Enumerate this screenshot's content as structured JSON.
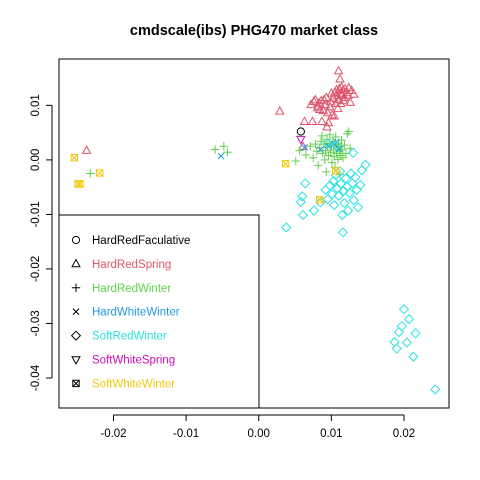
{
  "chart_data": {
    "type": "scatter",
    "title": "cmdscale(ibs) PHG470 market class",
    "xlabel": "",
    "ylabel": "",
    "xlim": [
      -0.0275,
      0.0262
    ],
    "ylim": [
      -0.0455,
      0.0185
    ],
    "x_ticks": [
      -0.02,
      -0.01,
      0.0,
      0.01,
      0.02
    ],
    "x_tick_labels": [
      "-0.02",
      "-0.01",
      "0.00",
      "0.01",
      "0.02"
    ],
    "y_ticks": [
      -0.04,
      -0.03,
      -0.02,
      -0.01,
      0.0,
      0.01
    ],
    "y_tick_labels": [
      "-0.04",
      "-0.03",
      "-0.02",
      "-0.01",
      "0.00",
      "0.01"
    ],
    "grid": false,
    "legend_position": "bottom-left",
    "series": [
      {
        "name": "HardRedFaculative",
        "symbol": "circle",
        "color": "#000000",
        "points": [
          [
            0.0058,
            0.0052
          ]
        ]
      },
      {
        "name": "HardRedSpring",
        "symbol": "triangle-up",
        "color": "#DF536B",
        "points": [
          [
            -0.0237,
            0.0017
          ],
          [
            0.0029,
            0.0089
          ],
          [
            0.0061,
            0.0024
          ],
          [
            0.0063,
            0.007
          ],
          [
            0.0072,
            0.0101
          ],
          [
            0.0074,
            0.007
          ],
          [
            0.0076,
            0.0107
          ],
          [
            0.0078,
            0.011
          ],
          [
            0.0081,
            0.0095
          ],
          [
            0.0082,
            0.0098
          ],
          [
            0.0083,
            0.0104
          ],
          [
            0.0084,
            0.0092
          ],
          [
            0.0086,
            0.0108
          ],
          [
            0.0087,
            0.007
          ],
          [
            0.0089,
            0.009
          ],
          [
            0.009,
            0.011
          ],
          [
            0.0092,
            0.0101
          ],
          [
            0.0093,
            0.0114
          ],
          [
            0.0094,
            0.006
          ],
          [
            0.0095,
            0.0086
          ],
          [
            0.0096,
            0.0068
          ],
          [
            0.0098,
            0.0097
          ],
          [
            0.0099,
            0.0106
          ],
          [
            0.01,
            0.0122
          ],
          [
            0.0101,
            0.0082
          ],
          [
            0.0103,
            0.0113
          ],
          [
            0.0104,
            0.008
          ],
          [
            0.0105,
            0.0124
          ],
          [
            0.0106,
            0.0103
          ],
          [
            0.0107,
            0.0128
          ],
          [
            0.0108,
            0.0117
          ],
          [
            0.0109,
            0.0094
          ],
          [
            0.011,
            0.011
          ],
          [
            0.0111,
            0.013
          ],
          [
            0.0112,
            0.0122
          ],
          [
            0.0113,
            0.0103
          ],
          [
            0.0114,
            0.0133
          ],
          [
            0.0115,
            0.0119
          ],
          [
            0.0116,
            0.0127
          ],
          [
            0.0117,
            0.0108
          ],
          [
            0.0118,
            0.0114
          ],
          [
            0.0119,
            0.013
          ],
          [
            0.0121,
            0.0123
          ],
          [
            0.0123,
            0.0118
          ],
          [
            0.0124,
            0.0132
          ],
          [
            0.0126,
            0.0105
          ],
          [
            0.0128,
            0.0127
          ],
          [
            0.0131,
            0.012
          ],
          [
            0.011,
            0.0163
          ],
          [
            0.0112,
            0.0148
          ]
        ]
      },
      {
        "name": "HardRedWinter",
        "symbol": "plus",
        "color": "#61D04F",
        "points": [
          [
            -0.0232,
            -0.0025
          ],
          [
            -0.006,
            0.0019
          ],
          [
            -0.0048,
            0.0025
          ],
          [
            -0.0043,
            0.0014
          ],
          [
            0.0051,
            -0.0002
          ],
          [
            0.0056,
            0.0017
          ],
          [
            0.0065,
            0.0009
          ],
          [
            0.0071,
            0.0025
          ],
          [
            0.0075,
            0.0004
          ],
          [
            0.0078,
            0.0029
          ],
          [
            0.008,
            0.0016
          ],
          [
            0.0082,
            -0.001
          ],
          [
            0.0084,
            0.0022
          ],
          [
            0.0086,
            0.0034
          ],
          [
            0.0087,
            0.0044
          ],
          [
            0.0088,
            0.0012
          ],
          [
            0.009,
            0.0029
          ],
          [
            0.0091,
            0.0
          ],
          [
            0.0092,
            0.0017
          ],
          [
            0.0094,
            0.0038
          ],
          [
            0.0095,
            0.0024
          ],
          [
            0.0096,
            0.0008
          ],
          [
            0.0097,
            0.003
          ],
          [
            0.0098,
            0.0046
          ],
          [
            0.0099,
            0.0014
          ],
          [
            0.01,
            0.0025
          ],
          [
            0.0101,
            -0.0005
          ],
          [
            0.0102,
            0.0034
          ],
          [
            0.0103,
            0.0018
          ],
          [
            0.0104,
            0.0006
          ],
          [
            0.0105,
            0.0028
          ],
          [
            0.0106,
            0.0042
          ],
          [
            0.0107,
            0.0012
          ],
          [
            0.0108,
            0.0022
          ],
          [
            0.0109,
            0.0001
          ],
          [
            0.011,
            0.0031
          ],
          [
            0.0111,
            0.0015
          ],
          [
            0.0112,
            0.0024
          ],
          [
            0.0113,
            0.0008
          ],
          [
            0.0114,
            0.0036
          ],
          [
            0.0115,
            0.0019
          ],
          [
            0.0116,
            0.0004
          ],
          [
            0.0118,
            0.0027
          ],
          [
            0.012,
            0.0012
          ],
          [
            0.0122,
            0.0048
          ],
          [
            0.0124,
            0.0052
          ],
          [
            0.0126,
            0.0021
          ],
          [
            0.0093,
            -0.0022
          ],
          [
            0.0105,
            -0.0014
          ],
          [
            0.0112,
            -0.0027
          ]
        ]
      },
      {
        "name": "HardWhiteWinter",
        "symbol": "cross",
        "color": "#2297E6",
        "points": [
          [
            -0.0052,
            0.0007
          ],
          [
            0.0063,
            0.0023
          ],
          [
            0.0085,
            0.0019
          ],
          [
            0.0096,
            0.0025
          ],
          [
            0.0104,
            0.0029
          ],
          [
            0.0111,
            0.002
          ],
          [
            0.0107,
            0.0033
          ]
        ]
      },
      {
        "name": "SoftRedWinter",
        "symbol": "diamond",
        "color": "#28E2E5",
        "points": [
          [
            0.0038,
            -0.0124
          ],
          [
            0.0058,
            -0.0077
          ],
          [
            0.006,
            -0.0067
          ],
          [
            0.0061,
            -0.0101
          ],
          [
            0.0064,
            -0.0043
          ],
          [
            0.0076,
            -0.0093
          ],
          [
            0.0085,
            -0.0078
          ],
          [
            0.0092,
            -0.0055
          ],
          [
            0.0095,
            -0.0072
          ],
          [
            0.0098,
            -0.0047
          ],
          [
            0.0101,
            -0.0063
          ],
          [
            0.0103,
            -0.0039
          ],
          [
            0.0104,
            -0.0083
          ],
          [
            0.0106,
            -0.0028
          ],
          [
            0.0108,
            -0.0052
          ],
          [
            0.011,
            -0.0066
          ],
          [
            0.0112,
            -0.0021
          ],
          [
            0.0113,
            -0.0044
          ],
          [
            0.0115,
            -0.0101
          ],
          [
            0.0116,
            -0.0133
          ],
          [
            0.0117,
            -0.0057
          ],
          [
            0.0118,
            -0.0079
          ],
          [
            0.012,
            -0.0034
          ],
          [
            0.0122,
            -0.0049
          ],
          [
            0.0123,
            -0.0093
          ],
          [
            0.0125,
            -0.0061
          ],
          [
            0.0127,
            -0.0025
          ],
          [
            0.0129,
            -0.0043
          ],
          [
            0.0131,
            -0.0074
          ],
          [
            0.0133,
            -0.0032
          ],
          [
            0.0135,
            -0.0055
          ],
          [
            0.0137,
            -0.0087
          ],
          [
            0.014,
            -0.0046
          ],
          [
            0.0142,
            -0.0019
          ],
          [
            0.0147,
            -0.0009
          ],
          [
            0.0107,
            0.0026
          ],
          [
            0.013,
            0.0013
          ],
          [
            0.0095,
            0.003
          ],
          [
            0.0187,
            -0.0334
          ],
          [
            0.019,
            -0.0346
          ],
          [
            0.0193,
            -0.0316
          ],
          [
            0.0197,
            -0.0305
          ],
          [
            0.02,
            -0.0274
          ],
          [
            0.0204,
            -0.0335
          ],
          [
            0.0207,
            -0.0292
          ],
          [
            0.0213,
            -0.0361
          ],
          [
            0.0216,
            -0.0318
          ],
          [
            0.0243,
            -0.0421
          ]
        ]
      },
      {
        "name": "SoftWhiteSpring",
        "symbol": "triangle-down",
        "color": "#CD0BBC",
        "points": [
          [
            0.0058,
            0.0038
          ]
        ]
      },
      {
        "name": "SoftWhiteWinter",
        "symbol": "box-cross",
        "color": "#F5C710",
        "points": [
          [
            -0.0254,
            0.0004
          ],
          [
            -0.0249,
            -0.0044
          ],
          [
            -0.0246,
            -0.0044
          ],
          [
            -0.0219,
            -0.0024
          ],
          [
            0.0037,
            -0.0007
          ],
          [
            0.0084,
            -0.0073
          ],
          [
            0.0106,
            -0.002
          ]
        ]
      }
    ]
  }
}
